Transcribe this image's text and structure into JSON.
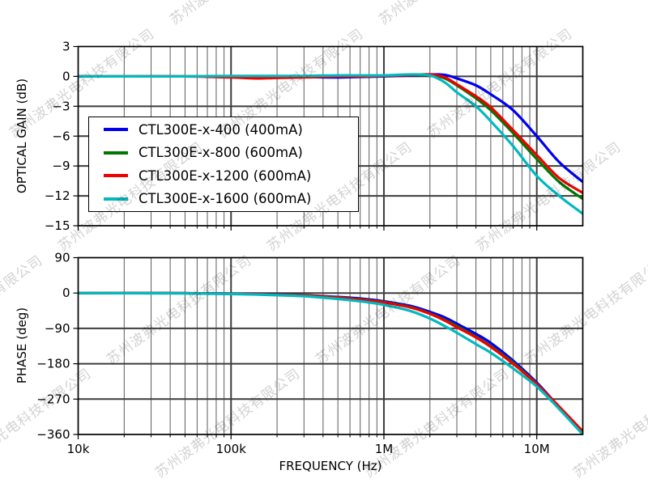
{
  "watermark": {
    "text": "苏州波弗光电科技有限公司",
    "color": "#cbcbcb"
  },
  "figure": {
    "background": "#ffffff",
    "x_axis_title": "FREQUENCY (Hz)"
  },
  "legend": {
    "position": "upper-left-of-gain-plot",
    "entries": [
      {
        "label": "CTL300E-x-400 (400mA)",
        "color": "#0000f0"
      },
      {
        "label": "CTL300E-x-800 (600mA)",
        "color": "#007700"
      },
      {
        "label": "CTL300E-x-1200 (600mA)",
        "color": "#ee0000"
      },
      {
        "label": "CTL300E-x-1600 (600mA)",
        "color": "#00b9bf"
      }
    ]
  },
  "chart_data": [
    {
      "type": "line",
      "ylabel": "OPTICAL GAIN (dB)",
      "xscale": "log",
      "xlim": [
        10000,
        20000000
      ],
      "ylim": [
        -15,
        3
      ],
      "yticks": [
        3,
        0,
        -3,
        -6,
        -9,
        -12,
        -15
      ],
      "ytick_labels": [
        "3",
        "0",
        "−3",
        "−6",
        "−9",
        "−12",
        "−15"
      ],
      "xticks": [
        10000,
        100000,
        1000000,
        10000000
      ],
      "xtick_labels": [],
      "grid": true,
      "x": [
        10000,
        20000,
        50000,
        100000,
        150000,
        200000,
        300000,
        500000,
        700000,
        1000000,
        1500000,
        2000000,
        2500000,
        3000000,
        4000000,
        5000000,
        7000000,
        10000000,
        14000000,
        20000000
      ],
      "series": [
        {
          "name": "CTL300E-x-400 (400mA)",
          "color": "#0000f0",
          "values": [
            0,
            0,
            0,
            0,
            0,
            0,
            -0.05,
            -0.1,
            -0.05,
            0,
            0.1,
            0.2,
            0.15,
            -0.2,
            -0.9,
            -1.8,
            -3.4,
            -6.0,
            -8.6,
            -10.6
          ]
        },
        {
          "name": "CTL300E-x-800 (600mA)",
          "color": "#007700",
          "values": [
            0,
            0,
            0,
            0,
            -0.05,
            -0.05,
            0,
            0,
            0,
            0.05,
            0.15,
            0.15,
            -0.2,
            -0.9,
            -2.2,
            -3.4,
            -5.7,
            -8.3,
            -10.6,
            -12.3
          ]
        },
        {
          "name": "CTL300E-x-1200 (600mA)",
          "color": "#ee0000",
          "values": [
            0,
            0,
            0,
            -0.1,
            -0.2,
            -0.15,
            -0.1,
            0,
            0,
            0.05,
            0.15,
            0.2,
            -0.1,
            -0.8,
            -2.0,
            -3.1,
            -5.4,
            -7.9,
            -10.2,
            -11.7
          ]
        },
        {
          "name": "CTL300E-x-1600 (600mA)",
          "color": "#00b9bf",
          "values": [
            0,
            0,
            0,
            0.05,
            0.05,
            0.05,
            0.05,
            0.1,
            0.1,
            0.1,
            0.2,
            0.1,
            -0.6,
            -1.6,
            -3.0,
            -4.5,
            -7.0,
            -10.0,
            -12.0,
            -13.8
          ]
        }
      ]
    },
    {
      "type": "line",
      "ylabel": "PHASE (deg)",
      "xlabel": "FREQUENCY (Hz)",
      "xscale": "log",
      "xlim": [
        10000,
        20000000
      ],
      "ylim": [
        -360,
        90
      ],
      "yticks": [
        90,
        0,
        -90,
        -180,
        -270,
        -360
      ],
      "ytick_labels": [
        "90",
        "0",
        "−90",
        "−180",
        "−270",
        "−360"
      ],
      "xticks": [
        10000,
        100000,
        1000000,
        10000000
      ],
      "xtick_labels": [
        "10k",
        "100k",
        "1M",
        "10M"
      ],
      "grid": true,
      "x": [
        10000,
        20000,
        50000,
        100000,
        150000,
        200000,
        300000,
        500000,
        700000,
        1000000,
        1500000,
        2000000,
        2500000,
        3000000,
        4000000,
        5000000,
        7000000,
        10000000,
        14000000,
        20000000
      ],
      "series": [
        {
          "name": "CTL300E-x-400 (400mA)",
          "color": "#0000f0",
          "values": [
            0,
            0,
            -0.5,
            -1.5,
            -2.5,
            -3.5,
            -5.5,
            -10,
            -14,
            -21,
            -33,
            -48,
            -62,
            -78,
            -104,
            -127,
            -172,
            -228,
            -290,
            -354
          ]
        },
        {
          "name": "CTL300E-x-800 (600mA)",
          "color": "#007700",
          "values": [
            0,
            0,
            -0.5,
            -2,
            -3,
            -4,
            -6,
            -11,
            -16,
            -23,
            -36,
            -52,
            -68,
            -84,
            -111,
            -135,
            -177,
            -231,
            -291,
            -356
          ]
        },
        {
          "name": "CTL300E-x-1200 (600mA)",
          "color": "#ee0000",
          "values": [
            0,
            0,
            -0.5,
            -2,
            -3,
            -4.5,
            -6.5,
            -12,
            -17,
            -24,
            -37,
            -53,
            -70,
            -87,
            -113,
            -137,
            -180,
            -232,
            -289,
            -352
          ]
        },
        {
          "name": "CTL300E-x-1600 (600mA)",
          "color": "#00b9bf",
          "values": [
            0,
            -0.5,
            -1,
            -2.5,
            -4,
            -5.5,
            -8,
            -15,
            -21,
            -30,
            -46,
            -65,
            -84,
            -101,
            -130,
            -152,
            -192,
            -238,
            -295,
            -360
          ]
        }
      ]
    }
  ]
}
